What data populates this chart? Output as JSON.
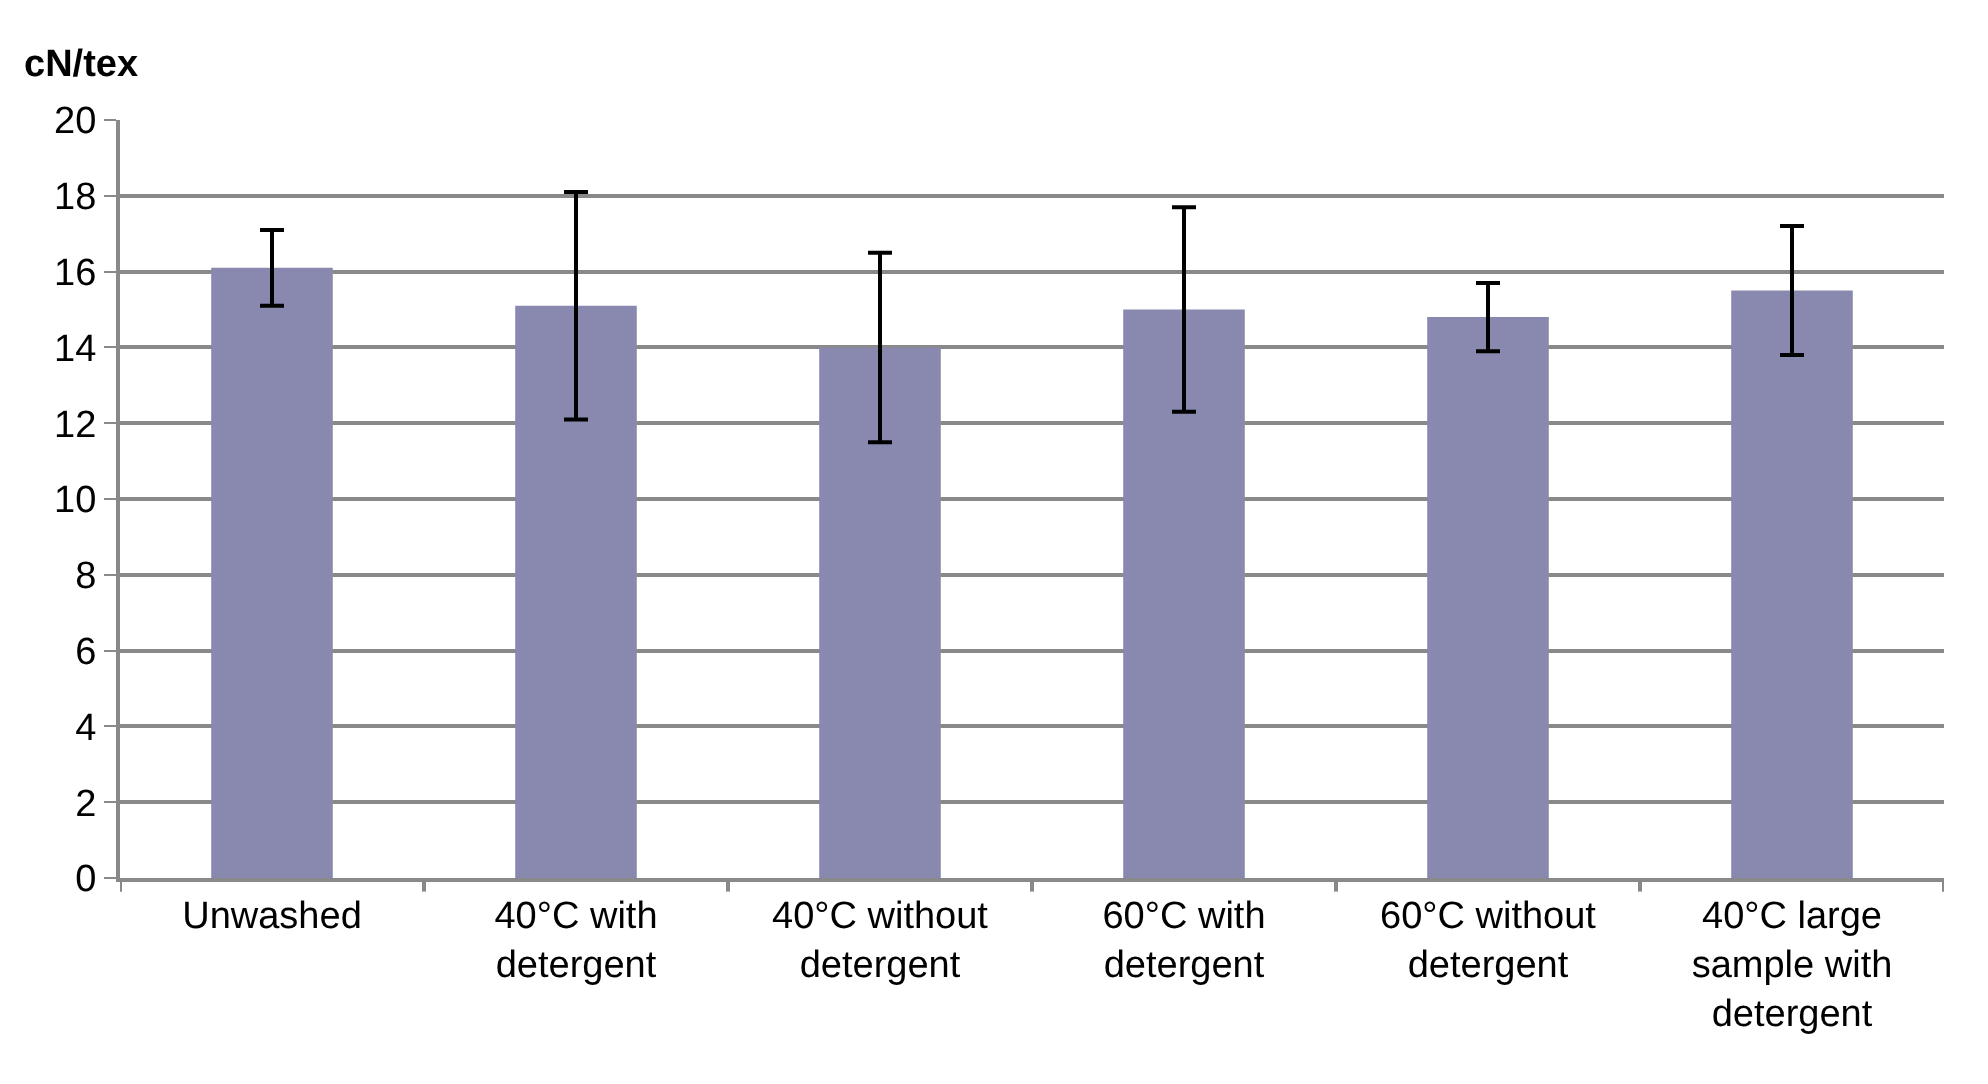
{
  "chart_data": {
    "type": "bar",
    "ylabel": "cN/tex",
    "categories": [
      "Unwashed",
      "40°C with\ndetergent",
      "40°C without\ndetergent",
      "60°C with\ndetergent",
      "60°C without\ndetergent",
      "40°C large\nsample with\ndetergent"
    ],
    "values": [
      16.1,
      15.1,
      14.0,
      15.0,
      14.8,
      15.5
    ],
    "errors": [
      [
        15.1,
        17.1
      ],
      [
        12.1,
        18.1
      ],
      [
        11.5,
        16.5
      ],
      [
        12.3,
        17.7
      ],
      [
        13.9,
        15.7
      ],
      [
        13.8,
        17.2
      ]
    ],
    "color": "#8989b0",
    "ylim": [
      0,
      20
    ],
    "yticks": [
      0,
      2,
      4,
      6,
      8,
      10,
      12,
      14,
      16,
      18,
      20
    ],
    "grid": "y"
  }
}
